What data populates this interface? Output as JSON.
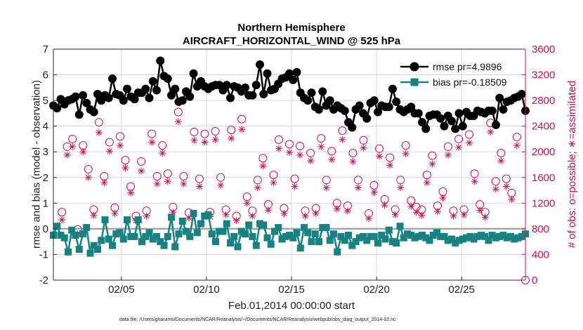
{
  "chart_data": {
    "type": "line",
    "title": [
      "Northern Hemisphere",
      "AIRCRAFT_HORIZONTAL_WIND @ 525 hPa"
    ],
    "xlabel": "Feb.01,2014 00:00:00 start",
    "ylabel_left": "rmse and bias (model - observation)",
    "ylabel_right": "# of obs: o=possible; ∗=assimilated",
    "footnote": "data file: /Users/gharamti/Documents/NCAR/Reanalysis/~/Documents/NCAR/Reanalysis/webpub/obs_diag_output_2014-02.nc",
    "x_unit": "days since Feb.01,2014 00:00:00",
    "xlim": [
      1,
      28.75
    ],
    "ylim_left": [
      -2,
      7
    ],
    "ylim_right": [
      0,
      3600
    ],
    "x_ticks": [
      5,
      10,
      15,
      20,
      25
    ],
    "x_tick_labels": [
      "02/05",
      "02/10",
      "02/15",
      "02/20",
      "02/25"
    ],
    "y_left_ticks": [
      -2,
      -1,
      0,
      1,
      2,
      3,
      4,
      5,
      6,
      7
    ],
    "y_right_ticks": [
      0,
      400,
      800,
      1200,
      1600,
      2000,
      2400,
      2800,
      3200,
      3600
    ],
    "grid": true,
    "legend_position": "top-right",
    "colors": {
      "rmse": "#000000",
      "bias": "#178282",
      "obs": "#d0104c",
      "zero": "#a6a6a6",
      "grid": "#d8d8d8"
    },
    "series": [
      {
        "name": "rmse pr=4.9896",
        "marker": "circle",
        "values": [
          4.8,
          4.7,
          5.05,
          4.85,
          5.0,
          5.05,
          5.15,
          4.45,
          5.2,
          4.9,
          4.65,
          4.55,
          5.25,
          5.0,
          5.2,
          5.1,
          5.85,
          5.25,
          5.2,
          5.0,
          5.45,
          5.15,
          5.05,
          5.3,
          5.3,
          5.45,
          5.1,
          5.75,
          5.4,
          6.55,
          5.95,
          5.85,
          5.2,
          5.45,
          4.95,
          5.0,
          5.35,
          5.15,
          6.05,
          5.55,
          5.75,
          5.55,
          5.45,
          5.55,
          5.6,
          5.6,
          5.4,
          5.6,
          5.1,
          5.55,
          5.5,
          5.35,
          5.5,
          5.2,
          5.2,
          5.6,
          6.4,
          5.25,
          6.05,
          5.4,
          5.45,
          5.65,
          5.85,
          5.9,
          6.05,
          5.8,
          6.1,
          5.3,
          5.1,
          5.0,
          5.3,
          4.75,
          4.65,
          5.35,
          4.8,
          5.0,
          4.65,
          4.8,
          4.7,
          4.6,
          4.15,
          3.95,
          4.65,
          4.8,
          4.5,
          4.3,
          4.9,
          5.0,
          4.55,
          4.8,
          4.75,
          4.75,
          5.45,
          4.95,
          4.65,
          4.55,
          4.65,
          4.75,
          4.5,
          4.5,
          4.15,
          3.9,
          4.4,
          4.45,
          4.45,
          4.3,
          4.0,
          4.4,
          4.2,
          3.9,
          4.5,
          4.0,
          4.55,
          4.4,
          4.4,
          4.6,
          4.55,
          4.5,
          4.6,
          4.6,
          4.05,
          5.1,
          4.65,
          4.95,
          5.0,
          5.1,
          5.15,
          5.25,
          4.6
        ]
      },
      {
        "name": "bias pr=-0.18509",
        "marker": "square",
        "values": [
          -0.25,
          0.1,
          -0.25,
          -0.35,
          -0.9,
          -0.05,
          -0.25,
          -0.8,
          -0.2,
          0.05,
          -0.95,
          -0.65,
          -0.8,
          -0.45,
          0.35,
          -0.4,
          -0.65,
          -0.2,
          -0.15,
          -0.4,
          0.35,
          -0.3,
          -0.3,
          0.35,
          -0.5,
          -0.3,
          -0.15,
          -0.4,
          -0.3,
          -0.5,
          -0.65,
          -0.3,
          0.45,
          -0.7,
          -0.2,
          0.3,
          -0.1,
          -0.3,
          0.6,
          -0.15,
          0.2,
          0.5,
          0.55,
          -0.2,
          -0.5,
          -0.1,
          -0.1,
          0.2,
          -0.55,
          -0.3,
          -0.7,
          -0.1,
          -0.2,
          0.15,
          -0.3,
          -0.65,
          0.2,
          0.15,
          -0.35,
          -0.6,
          -0.1,
          0.05,
          -0.4,
          -0.3,
          -0.25,
          -0.35,
          -0.15,
          -0.75,
          0.05,
          -0.15,
          -0.5,
          -0.2,
          -0.5,
          0.05,
          0.05,
          -0.45,
          -0.2,
          -0.9,
          -0.3,
          -0.45,
          -0.25,
          -0.65,
          -0.5,
          -0.35,
          -0.3,
          -0.45,
          -0.3,
          -0.3,
          -0.55,
          -0.25,
          -0.4,
          -0.05,
          -0.5,
          -0.55,
          0.1,
          -0.35,
          -0.2,
          -0.25,
          -0.35,
          -0.3,
          -0.25,
          -0.35,
          -0.45,
          -0.25,
          -0.15,
          -0.3,
          -0.3,
          -0.45,
          -0.4,
          -0.55,
          -0.45,
          -0.4,
          -0.35,
          -0.3,
          -0.4,
          -0.3,
          -0.25,
          -0.3,
          -0.45,
          -0.25,
          -0.35,
          -0.3,
          -0.25,
          -0.35,
          -0.3,
          -0.4,
          -0.35,
          -0.3,
          -0.2
        ]
      }
    ],
    "obs_series": [
      {
        "name": "possible",
        "marker": "circle-open",
        "values": [
          1060,
          2080,
          2200,
          790,
          2100,
          1730,
          1100,
          2460,
          1620,
          2150,
          1130,
          2240,
          1870,
          1460,
          1000,
          1850,
          1080,
          2280,
          1620,
          2100,
          1660,
          1140,
          2620,
          1620,
          1050,
          2310,
          1580,
          2280,
          1060,
          2320,
          1600,
          1100,
          2340,
          1000,
          2510,
          1300,
          1080,
          1560,
          1900,
          1180,
          1640,
          2190,
          1120,
          2120,
          1580,
          2090,
          1080,
          1980,
          1120,
          2210,
          1560,
          2010,
          1200,
          2330,
          1160,
          1980,
          1560,
          2180,
          1040,
          1480,
          2050,
          1260,
          1910,
          1100,
          1560,
          2100,
          1240,
          1140,
          1100,
          1640,
          1940,
          1160,
          1380,
          2080,
          1080,
          2200,
          1100,
          2270,
          1660,
          1180,
          1060,
          2450,
          1540,
          1980,
          1580,
          1360,
          2230
        ]
      },
      {
        "name": "assimilated",
        "marker": "asterisk",
        "values": [
          940,
          1950,
          2080,
          720,
          2000,
          1600,
          1010,
          2300,
          1520,
          2010,
          1040,
          2100,
          1750,
          1360,
          930,
          1700,
          1000,
          2150,
          1500,
          1980,
          1540,
          1060,
          2470,
          1500,
          970,
          2180,
          1460,
          2150,
          990,
          2190,
          1480,
          1020,
          2210,
          930,
          2350,
          1200,
          1000,
          1440,
          1780,
          1090,
          1520,
          2050,
          1040,
          1990,
          1460,
          1950,
          1000,
          1860,
          1040,
          2080,
          1440,
          1880,
          1110,
          2190,
          1080,
          1850,
          1440,
          2060,
          960,
          1370,
          1930,
          1170,
          1790,
          1020,
          1440,
          1970,
          1150,
          1060,
          1010,
          1520,
          1810,
          1070,
          1280,
          1950,
          1000,
          2070,
          1020,
          2140,
          1540,
          1090,
          980,
          2310,
          1420,
          1860,
          1460,
          1260,
          2100
        ]
      }
    ]
  }
}
